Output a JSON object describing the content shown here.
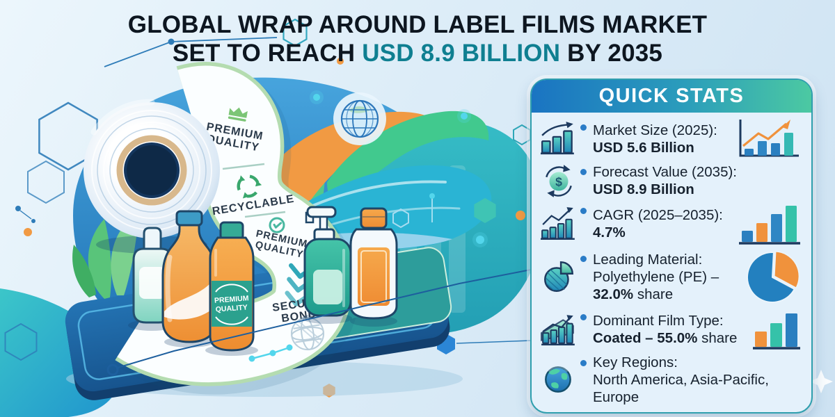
{
  "title": {
    "line1": "GLOBAL WRAP AROUND LABEL FILMS MARKET",
    "line2_prefix": "SET TO REACH ",
    "line2_highlight": "USD 8.9 BILLION",
    "line2_suffix": " BY 2035",
    "highlight_color": "#0f7f91"
  },
  "illustration": {
    "roll_label_ribbon": {
      "sections": [
        {
          "icon": "crown-icon",
          "line1": "PREMIUM",
          "line2": "QUALITY"
        },
        {
          "icon": "recycle-icon",
          "line1": "RECYCLABLE",
          "line2": ""
        },
        {
          "icon": "seal-check-icon",
          "line1": "PREMIUM",
          "line2": "QUALITY"
        },
        {
          "icon": "chevrons-down-icon",
          "line1": "SECURE",
          "line2": "BOND"
        }
      ]
    },
    "bottle_label": {
      "line1": "PREMIUM",
      "line2": "QUALITY"
    }
  },
  "panel": {
    "header": "QUICK STATS",
    "icons": {
      "dollar": "$"
    },
    "items": [
      {
        "label": "Market Size (2025):",
        "value": "USD 5.6 Billion"
      },
      {
        "label": "Forecast Value (2035):",
        "value": "USD 8.9 Billion"
      },
      {
        "label": "CAGR (2025–2035):",
        "value": "4.7%"
      },
      {
        "label": "Leading Material:",
        "line2": "Polyethylene (PE) –",
        "value": "32.0%",
        "suffix": " share"
      },
      {
        "label": "Dominant Film Type:",
        "value": "Coated – 55.0%",
        "suffix": " share"
      },
      {
        "label": "Key Regions:",
        "line2": "North America, Asia-Pacific,",
        "line3": "Europe"
      }
    ]
  },
  "colors": {
    "accent_teal": "#2fa7b8",
    "accent_blue": "#2a7fc0",
    "accent_orange": "#f0923c",
    "panel_border": "#2f9fae",
    "header_gradient_start": "#1a74c2",
    "header_gradient_end": "#4cc9a2",
    "bullet": "#2a7cc7",
    "text": "#16212e"
  },
  "chart_data": [
    {
      "type": "bar",
      "name": "market-size-mini",
      "title": "Market growth mini chart",
      "values": [
        10,
        21,
        18,
        33
      ],
      "colors": [
        "#2a7fc0",
        "#2f86c4",
        "#2a7fc0",
        "#35b9b4"
      ],
      "annotation": "upward orange trend arrow",
      "unit": "relative height"
    },
    {
      "type": "bar",
      "name": "cagr-mini",
      "title": "CAGR mini chart",
      "values": [
        16,
        27,
        40,
        52
      ],
      "colors": [
        "#2a7fc0",
        "#f0923c",
        "#2f86c4",
        "#35c2a9"
      ],
      "unit": "relative height"
    },
    {
      "type": "pie",
      "name": "leading-material-share",
      "title": "Leading material share",
      "slices": [
        {
          "label": "Polyethylene (PE)",
          "value": 32,
          "color": "#f0923c",
          "offset": true
        },
        {
          "label": "Other materials",
          "value": 68,
          "color": "#2380bf"
        }
      ]
    },
    {
      "type": "bar",
      "name": "film-type-mini",
      "title": "Film type mini chart",
      "values": [
        22,
        34,
        48
      ],
      "colors": [
        "#f0923c",
        "#35c2a9",
        "#2a7fc0"
      ],
      "unit": "relative height"
    },
    {
      "type": "table",
      "name": "key-figures",
      "rows": [
        [
          "Market Size (2025)",
          "USD 5.6 Billion"
        ],
        [
          "Forecast Value (2035)",
          "USD 8.9 Billion"
        ],
        [
          "CAGR (2025–2035)",
          "4.7%"
        ],
        [
          "Leading Material",
          "Polyethylene (PE) – 32.0% share"
        ],
        [
          "Dominant Film Type",
          "Coated – 55.0% share"
        ],
        [
          "Key Regions",
          "North America, Asia-Pacific, Europe"
        ]
      ]
    }
  ]
}
